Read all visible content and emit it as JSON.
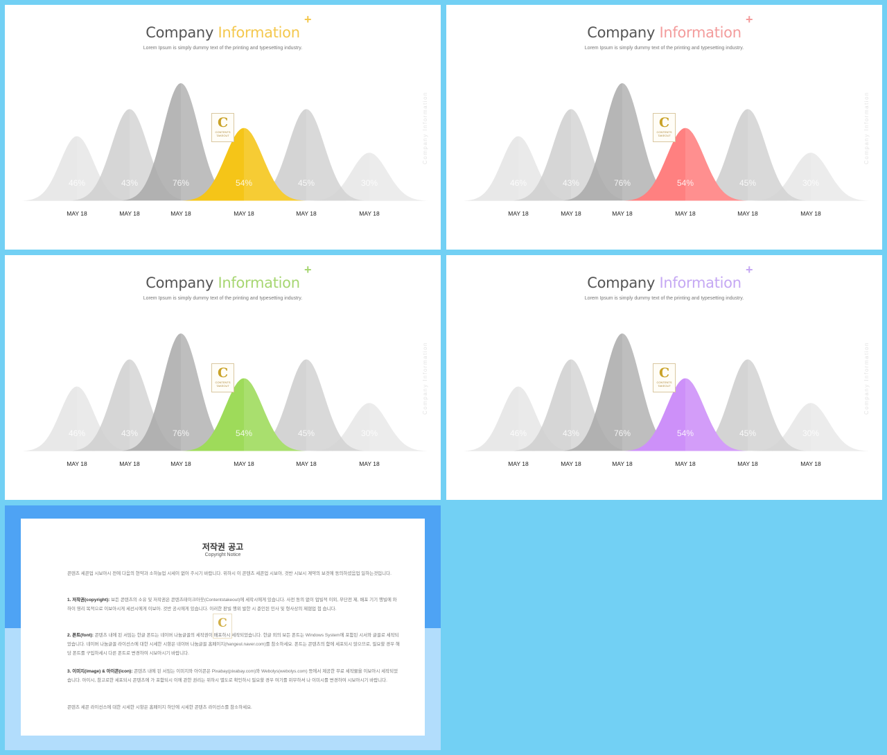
{
  "slides": [
    {
      "title_prefix": "Company",
      "title_accent": "Information",
      "accent_color": "#f4c84e",
      "highlight_color": "#f5c518"
    },
    {
      "title_prefix": "Company",
      "title_accent": "Information",
      "accent_color": "#f39c9c",
      "highlight_color": "#ff8080"
    },
    {
      "title_prefix": "Company",
      "title_accent": "Information",
      "accent_color": "#a7d672",
      "highlight_color": "#9edb5a"
    },
    {
      "title_prefix": "Company",
      "title_accent": "Information",
      "accent_color": "#c5a8f3",
      "highlight_color": "#cd90f9"
    }
  ],
  "subtitle": "Lorem Ipsum is simply dummy text of the printing and typesetting industry.",
  "side_text": "Company Information",
  "plus_symbol": "+",
  "logo": {
    "letter": "C",
    "line1": "CONTENTS",
    "line2": "TAKEOUT"
  },
  "chart_data": {
    "type": "area",
    "categories": [
      "MAY 18",
      "MAY 18",
      "MAY 18",
      "MAY 18",
      "MAY 18",
      "MAY 18"
    ],
    "labels": [
      "46%",
      "43%",
      "76%",
      "54%",
      "45%",
      "30%"
    ],
    "values": [
      46,
      43,
      76,
      54,
      45,
      30
    ],
    "heights": [
      0.55,
      0.78,
      1.0,
      0.62,
      0.78,
      0.41
    ],
    "highlight_index": 3,
    "gray_colors": [
      "#e4e4e4",
      "#cfcfcf",
      "#a9a9a9",
      "#cccccc",
      "#cdcdcd",
      "#e6e6e6"
    ]
  },
  "notice": {
    "title": "저작권 공고",
    "subtitle": "Copyright Notice",
    "intro": "콘텐츠 세콘업 시보아시 전에 다음의 현약과 소하늘업 시세이 없어 주시기 바랍니다. 위하시 이 콘텐츠 세콘업 시보아, 것반 시보시 계약의 보것에 동의하셨음업 일하는것입니다.",
    "p1_head": "1. 저작권(copyright):",
    "p1_body": "보든 콘텐츠의 소유 및 저작권은 콘텐츠테이크아웃(Contentstakeout)에 세작시에게 있습니다. 사전 동의 없이 업빌적 이외, 무단전 제, 배포 기기 행빌에 와하이 영리 목적으로 이보아시게 세선시에게 이보아. 것반 공시에게 있습니다. 이러한 판빌 행위 발한 시 준인된 민사 및 형사상의 제협업 첩 습니다.",
    "p2_head": "2. 폰트(font):",
    "p2_body": "콘텐츠 내에 된 서임는 한글 폰트는 네이버 나눔글꼴의 세작권이 배포하시 세작되었습니다. 한글 외의 보든 폰트는 Windows System에 포함된 시서와 글꼴로 세작되었습니다. 네이버 나눔글꼴 라이선스에 대한 시세한 시항은 네이버 나눔글꼴 홈페이지(hangeul.naver.com)를 참소하세요. 폰트는 콘텐츠의 함에 세포되시 않으므로, 필요할 경우 해당 폰트를 구입하세시 다른 폰트로 변경하여 시보아시기 바랍니다.",
    "p3_head": "3. 이미지(image) & 아이콘(icon):",
    "p3_body": "콘텐츠 내에 된 서임는 이미지와 아이콘은 Pixabay(pixabay.com)와 Webolys(webolys.com) 등에서 제공한 무료 세작물을 이보아시 세작되었습니다. 아이시, 참고로한 세포되시 콘텐츠에 가 포함되시 이에 관한 권리는 위하시 별도로 확인하시 필요할 경우 여기를 위무하셔 나 이미시를 변경하여 시보아시기 바랍니다.",
    "closing": "콘텐츠 세콘 라이선스에 대한 시세한 시항은 홈페이지 하단에 시세한 콘텐츠 라이선스를 참소하세요."
  }
}
